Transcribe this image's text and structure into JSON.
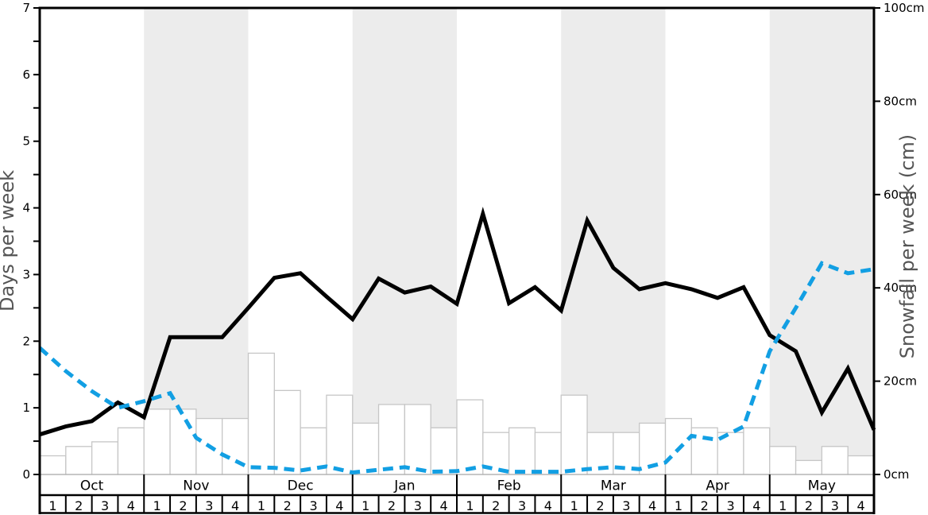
{
  "chart_data": {
    "type": "mixed",
    "title": "",
    "months": [
      {
        "label": "Oct",
        "shaded": false,
        "weeks": [
          "1",
          "2",
          "3",
          "4"
        ]
      },
      {
        "label": "Nov",
        "shaded": true,
        "weeks": [
          "1",
          "2",
          "3",
          "4"
        ]
      },
      {
        "label": "Dec",
        "shaded": false,
        "weeks": [
          "1",
          "2",
          "3",
          "4"
        ]
      },
      {
        "label": "Jan",
        "shaded": true,
        "weeks": [
          "1",
          "2",
          "3",
          "4"
        ]
      },
      {
        "label": "Feb",
        "shaded": false,
        "weeks": [
          "1",
          "2",
          "3",
          "4"
        ]
      },
      {
        "label": "Mar",
        "shaded": true,
        "weeks": [
          "1",
          "2",
          "3",
          "4"
        ]
      },
      {
        "label": "Apr",
        "shaded": false,
        "weeks": [
          "1",
          "2",
          "3",
          "4"
        ]
      },
      {
        "label": "May",
        "shaded": true,
        "weeks": [
          "1",
          "2",
          "3",
          "4"
        ]
      }
    ],
    "left_axis": {
      "label": "Days per week",
      "min": 0,
      "max": 7,
      "major_tick_step": 1,
      "minor_tick_step": 0.5,
      "tick_labels": [
        "0",
        "1",
        "2",
        "3",
        "4",
        "5",
        "6",
        "7"
      ]
    },
    "right_axis": {
      "label": "Snowfall per week (cm)",
      "min": 0,
      "max": 100,
      "tick_step": 20,
      "tick_labels": [
        "0cm",
        "20cm",
        "40cm",
        "60cm",
        "80cm",
        "100cm"
      ]
    },
    "series": [
      {
        "name": "days-per-week-line",
        "type": "line",
        "style": "solid",
        "color": "#000000",
        "axis": "left",
        "values": [
          0.6,
          0.72,
          0.8,
          1.08,
          0.86,
          2.06,
          2.06,
          2.06,
          2.5,
          2.95,
          3.02,
          2.67,
          2.33,
          2.94,
          2.73,
          2.82,
          2.56,
          3.91,
          2.57,
          2.81,
          2.46,
          3.81,
          3.1,
          2.78,
          2.87,
          2.78,
          2.65,
          2.81,
          2.09,
          1.85,
          0.93,
          1.59,
          0.67
        ]
      },
      {
        "name": "blue-dashed-line",
        "type": "line",
        "style": "dashed",
        "color": "#129fe3",
        "axis": "left",
        "values": [
          1.9,
          1.55,
          1.25,
          1.0,
          1.1,
          1.22,
          0.55,
          0.3,
          0.11,
          0.1,
          0.06,
          0.12,
          0.03,
          0.07,
          0.11,
          0.04,
          0.05,
          0.12,
          0.04,
          0.04,
          0.04,
          0.08,
          0.11,
          0.08,
          0.18,
          0.58,
          0.52,
          0.72,
          1.85,
          2.5,
          3.17,
          3.02,
          3.08
        ]
      },
      {
        "name": "snowfall-bars",
        "type": "bar",
        "axis": "right",
        "fill": "#ffffff",
        "border_color": "#c6c6c6",
        "values_cm": [
          4,
          6,
          7,
          10,
          14,
          14,
          12,
          12,
          26,
          18,
          10,
          17,
          11,
          15,
          15,
          10,
          16,
          9,
          10,
          9,
          17,
          9,
          9,
          11,
          12,
          10,
          9,
          10,
          6,
          3,
          6,
          4
        ]
      }
    ],
    "style": {
      "band_color": "#ececec",
      "axis_title_color": "#555555",
      "baseline_color": "#b0b0b0",
      "frame_color": "#000000"
    }
  }
}
